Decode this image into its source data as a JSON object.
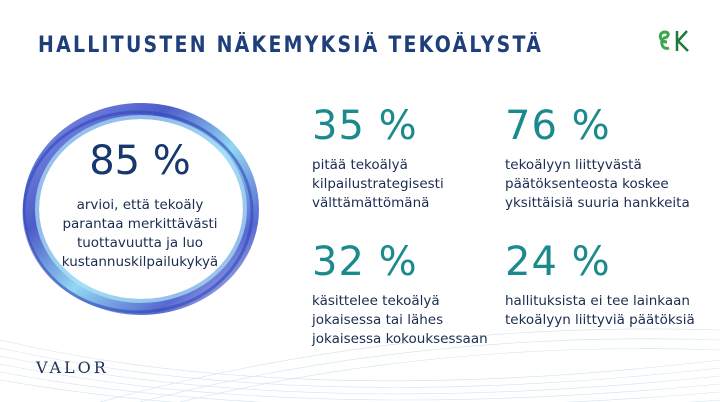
{
  "title": "HALLITUSTEN NÄKEMYKSIÄ TEKOÄLYSTÄ",
  "logo_text": "ek",
  "brand": "VALOR",
  "colors": {
    "title": "#1f3f7a",
    "accent": "#1a8a8c",
    "text": "#1c2c50"
  },
  "highlight": {
    "value": "85 %",
    "lines": [
      "arvioi, että tekoäly",
      "parantaa merkittävästi",
      "tuottavuutta ja luo",
      "kustannuskilpailukykyä"
    ]
  },
  "stats": [
    {
      "value": "35 %",
      "lines": [
        "pitää tekoälyä",
        "kilpailustrategisesti",
        "välttämättömänä"
      ]
    },
    {
      "value": "76 %",
      "lines": [
        "tekoälyyn liittyvästä",
        "päätöksenteosta koskee",
        "yksittäisiä suuria hankkeita"
      ]
    },
    {
      "value": "32 %",
      "lines": [
        "käsittelee tekoälyä",
        "jokaisessa tai lähes",
        "jokaisessa kokouksessaan"
      ]
    },
    {
      "value": "24 %",
      "lines": [
        "hallituksista ei tee lainkaan",
        "tekoälyyn liittyviä päätöksiä"
      ]
    }
  ]
}
